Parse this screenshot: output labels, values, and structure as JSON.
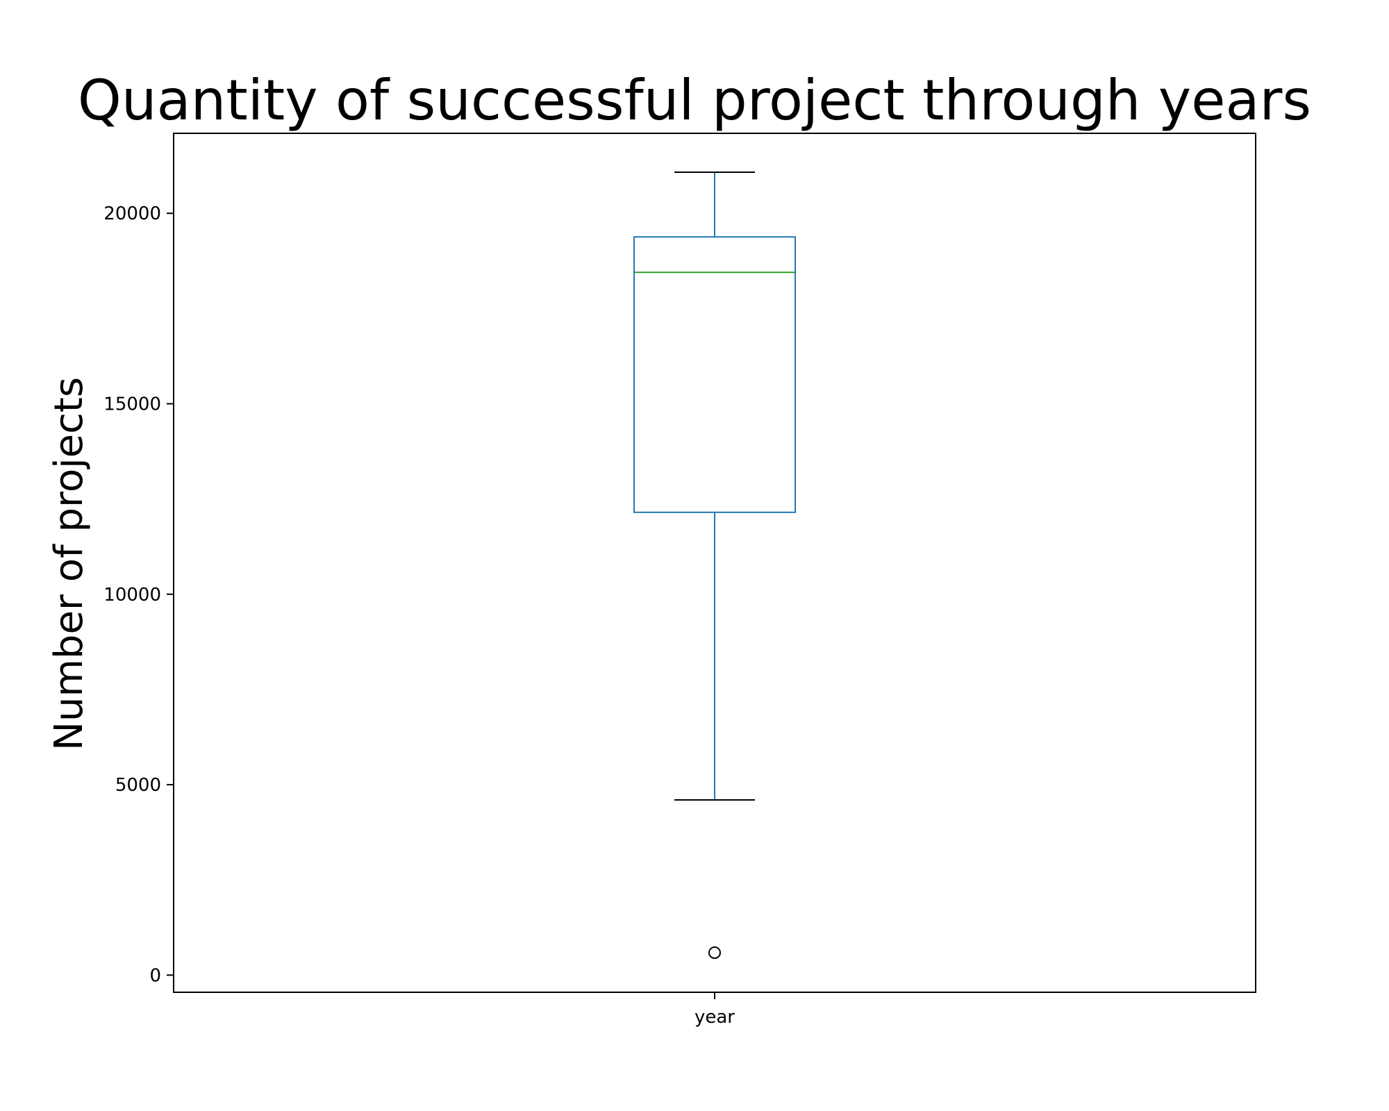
{
  "chart_data": {
    "type": "box",
    "title": "Quantity of successful project through years",
    "xlabel": "",
    "ylabel": "Number of projects",
    "categories": [
      "year"
    ],
    "ylim": [
      -450,
      22100
    ],
    "yticks": [
      0,
      5000,
      10000,
      15000,
      20000
    ],
    "ytick_labels": [
      "0",
      "5000",
      "10000",
      "15000",
      "20000"
    ],
    "grid": false,
    "boxes": [
      {
        "category": "year",
        "whisker_low": 4600,
        "q1": 12150,
        "median": 18450,
        "q3": 19380,
        "whisker_high": 21080,
        "outliers": [
          590
        ]
      }
    ],
    "colors": {
      "box": "#1f77b4",
      "median": "#2ca02c",
      "caps": "#000000",
      "outlier": "#000000"
    }
  }
}
